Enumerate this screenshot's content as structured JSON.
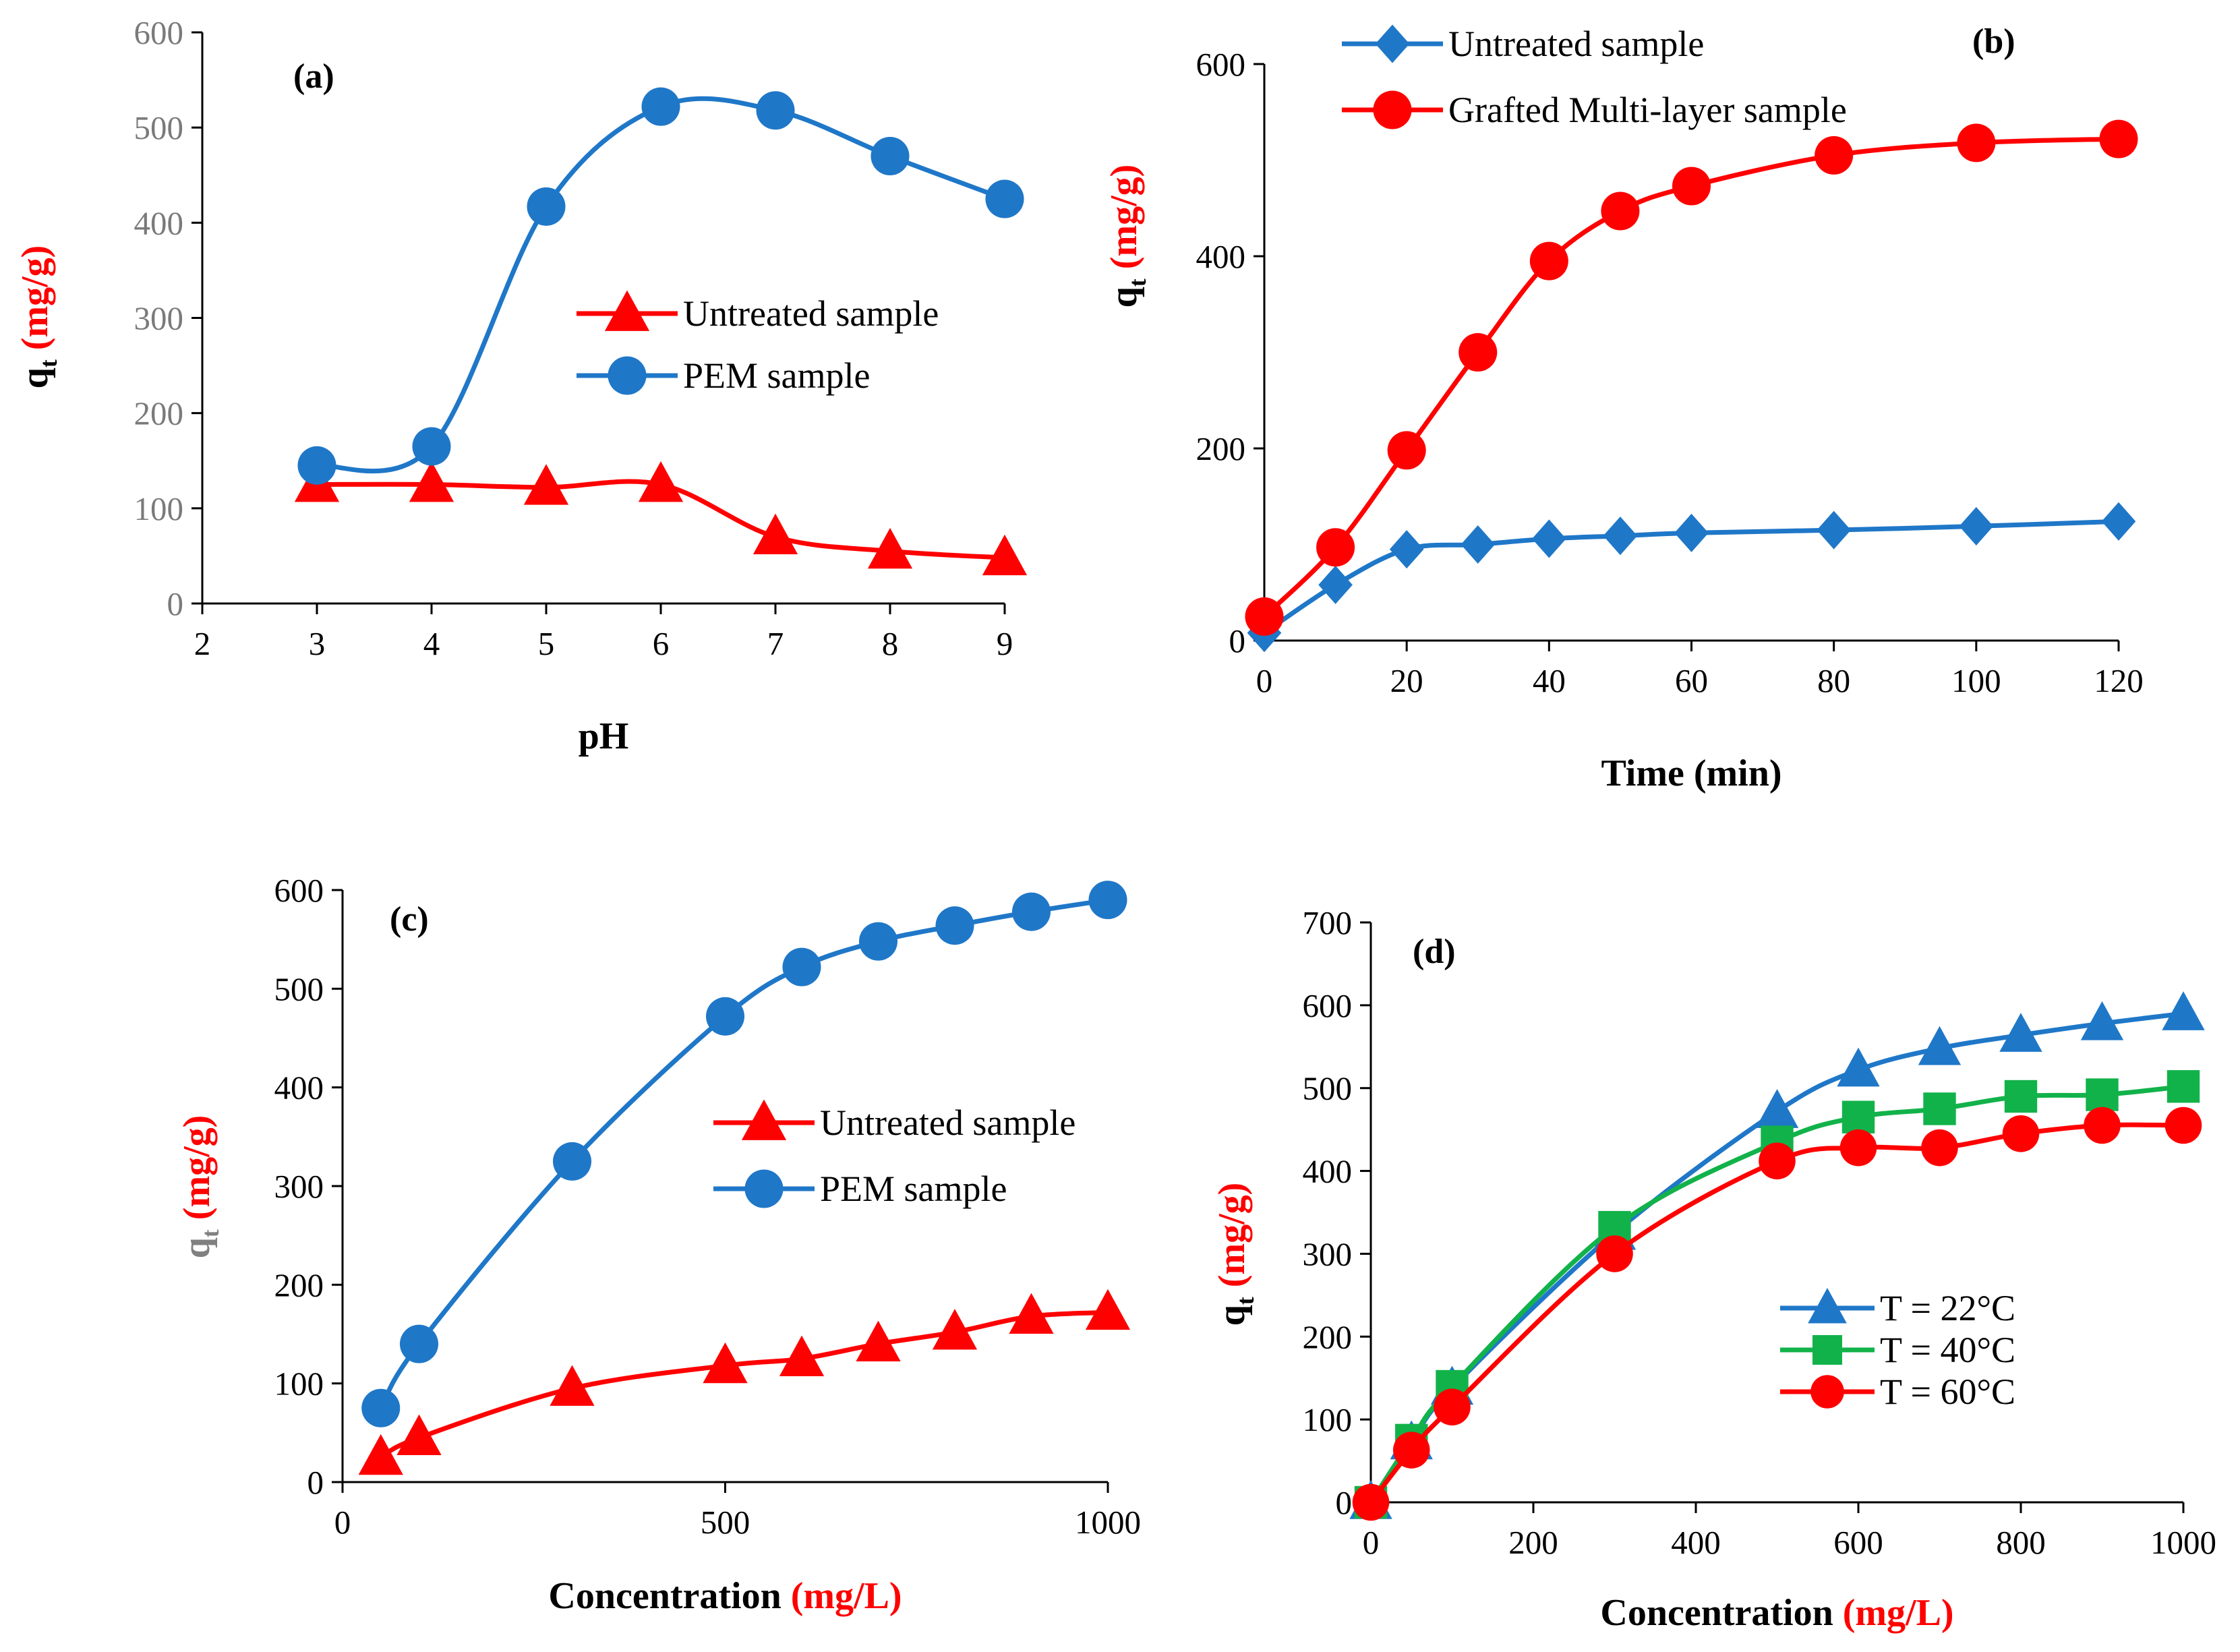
{
  "colors": {
    "red": "#ff0000",
    "blue": "#1f77c8",
    "green": "#12b24a",
    "axis": "#000000",
    "gray_tick": "#7a7a7a",
    "gray_label": "#808080"
  },
  "ylabel_common": {
    "main": "q",
    "sub": "t",
    "unit": "(mg/g)"
  },
  "chart_data": [
    {
      "id": "a",
      "type": "line",
      "panel_label": "(a)",
      "xlabel": "pH",
      "xlim": [
        2,
        9
      ],
      "ylim": [
        0,
        600
      ],
      "xticks": [
        2,
        3,
        4,
        5,
        6,
        7,
        8,
        9
      ],
      "yticks": [
        0,
        100,
        200,
        300,
        400,
        500,
        600
      ],
      "legend_position": "center-right",
      "series": [
        {
          "name": "Untreated sample",
          "color": "#ff0000",
          "marker": "triangle",
          "x": [
            3,
            4,
            5,
            6,
            7,
            8,
            9
          ],
          "y": [
            125,
            125,
            122,
            125,
            70,
            55,
            48
          ]
        },
        {
          "name": "PEM sample",
          "color": "#1f77c8",
          "marker": "circle",
          "x": [
            3,
            4,
            5,
            6,
            7,
            8,
            9
          ],
          "y": [
            145,
            165,
            417,
            522,
            518,
            470,
            425
          ]
        }
      ]
    },
    {
      "id": "b",
      "type": "line",
      "panel_label": "(b)",
      "xlabel": "Time (min)",
      "xlim": [
        0,
        120
      ],
      "ylim": [
        0,
        600
      ],
      "xticks": [
        0,
        20,
        40,
        60,
        80,
        100,
        120
      ],
      "yticks": [
        0,
        200,
        400,
        600
      ],
      "legend_position": "top-left",
      "series": [
        {
          "name": "Untreated sample",
          "color": "#1f77c8",
          "marker": "diamond",
          "x": [
            0,
            10,
            20,
            30,
            40,
            50,
            60,
            80,
            100,
            120
          ],
          "y": [
            8,
            58,
            95,
            100,
            106,
            109,
            112,
            115,
            119,
            124
          ]
        },
        {
          "name": "Grafted Multi-layer sample",
          "color": "#ff0000",
          "marker": "circle",
          "x": [
            0,
            10,
            20,
            30,
            40,
            50,
            60,
            80,
            100,
            120
          ],
          "y": [
            25,
            97,
            198,
            300,
            395,
            447,
            473,
            505,
            518,
            522
          ]
        }
      ]
    },
    {
      "id": "c",
      "type": "line",
      "panel_label": "(c)",
      "xlabel": "Concentration",
      "xlabel_unit": "(mg/L)",
      "xlim": [
        0,
        1000
      ],
      "ylim": [
        0,
        600
      ],
      "xticks": [
        0,
        500,
        1000
      ],
      "yticks": [
        0,
        100,
        200,
        300,
        400,
        500,
        600
      ],
      "legend_position": "center-right",
      "series": [
        {
          "name": "Untreated sample",
          "color": "#ff0000",
          "marker": "triangle",
          "x": [
            50,
            100,
            300,
            500,
            600,
            700,
            800,
            900,
            1000
          ],
          "y": [
            25,
            45,
            95,
            118,
            125,
            140,
            152,
            168,
            172
          ]
        },
        {
          "name": "PEM sample",
          "color": "#1f77c8",
          "marker": "circle",
          "x": [
            50,
            100,
            300,
            500,
            600,
            700,
            800,
            900,
            1000
          ],
          "y": [
            75,
            140,
            325,
            472,
            522,
            548,
            564,
            578,
            590
          ]
        }
      ]
    },
    {
      "id": "d",
      "type": "line",
      "panel_label": "(d)",
      "xlabel": "Concentration",
      "xlabel_unit": "(mg/L)",
      "xlim": [
        0,
        1000
      ],
      "ylim": [
        0,
        700
      ],
      "xticks": [
        0,
        200,
        400,
        600,
        800,
        1000
      ],
      "yticks": [
        0,
        100,
        200,
        300,
        400,
        500,
        600,
        700
      ],
      "legend_position": "bottom-right",
      "series": [
        {
          "name": "T = 22°C",
          "color": "#1f77c8",
          "marker": "triangle",
          "x": [
            0,
            50,
            100,
            300,
            500,
            600,
            700,
            800,
            900,
            1000
          ],
          "y": [
            0,
            72,
            138,
            325,
            472,
            522,
            548,
            564,
            578,
            590
          ]
        },
        {
          "name": "T = 40°C",
          "color": "#12b24a",
          "marker": "square",
          "x": [
            0,
            50,
            100,
            300,
            500,
            600,
            700,
            800,
            900,
            1000
          ],
          "y": [
            0,
            75,
            140,
            332,
            435,
            465,
            475,
            490,
            492,
            502
          ]
        },
        {
          "name": "T = 60°C",
          "color": "#ff0000",
          "marker": "circle",
          "x": [
            0,
            50,
            100,
            300,
            500,
            600,
            700,
            800,
            900,
            1000
          ],
          "y": [
            0,
            63,
            115,
            300,
            412,
            428,
            428,
            445,
            455,
            455
          ]
        }
      ]
    }
  ]
}
